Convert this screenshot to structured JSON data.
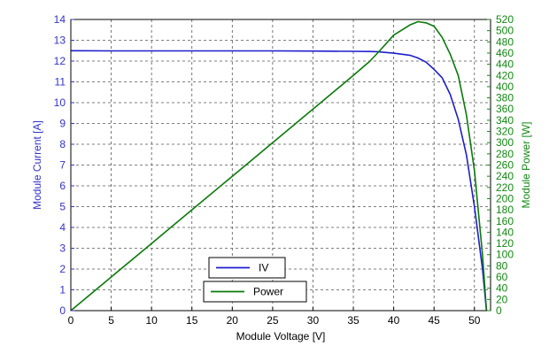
{
  "chart_data": {
    "type": "line",
    "title": "",
    "xlabel": "Module Voltage [V]",
    "ylabel_left": "Module Current [A]",
    "ylabel_right": "Module Power [W]",
    "xlim": [
      0,
      52
    ],
    "ylim_left": [
      0,
      14
    ],
    "ylim_right": [
      0,
      520
    ],
    "x_ticks": [
      0,
      5,
      10,
      15,
      20,
      25,
      30,
      35,
      40,
      45,
      50
    ],
    "y_left_ticks": [
      0,
      1,
      2,
      3,
      4,
      5,
      6,
      7,
      8,
      9,
      10,
      11,
      12,
      13,
      14
    ],
    "y_right_ticks": [
      0,
      20,
      40,
      60,
      80,
      100,
      120,
      140,
      160,
      180,
      200,
      220,
      240,
      260,
      280,
      300,
      320,
      340,
      360,
      380,
      400,
      420,
      440,
      460,
      480,
      500,
      520
    ],
    "grid": true,
    "legend_position": "bottom-center",
    "colors": {
      "iv": "#1e1ecc",
      "power": "#0a7a0a",
      "left_axis": "#3232cc",
      "right_axis": "#118811",
      "grid": "#555555"
    },
    "series": [
      {
        "name": "IV",
        "axis": "left",
        "x": [
          0,
          5,
          10,
          15,
          20,
          25,
          30,
          35,
          37,
          38,
          40,
          42,
          43,
          44,
          45,
          46,
          47,
          48,
          49,
          50,
          51,
          51.5
        ],
        "values": [
          12.5,
          12.49,
          12.49,
          12.49,
          12.49,
          12.49,
          12.48,
          12.47,
          12.46,
          12.45,
          12.38,
          12.28,
          12.15,
          11.95,
          11.6,
          11.2,
          10.4,
          9.2,
          7.5,
          5.0,
          2.0,
          0
        ]
      },
      {
        "name": "Power",
        "axis": "right",
        "x": [
          0,
          5,
          10,
          15,
          20,
          25,
          30,
          35,
          37,
          38,
          40,
          42,
          43,
          44,
          45,
          46,
          47,
          48,
          49,
          50,
          51,
          51.5
        ],
        "values": [
          0,
          60,
          120,
          180,
          240,
          300,
          360,
          420,
          445,
          460,
          492,
          510,
          516,
          514,
          508,
          488,
          458,
          420,
          350,
          250,
          100,
          0
        ]
      }
    ]
  }
}
